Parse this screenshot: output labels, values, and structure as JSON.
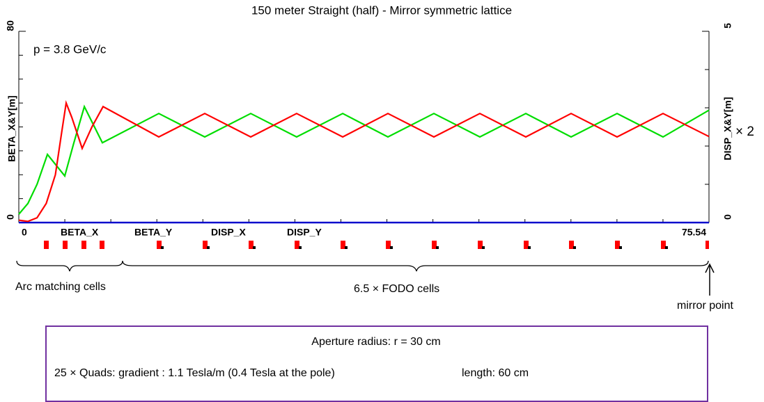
{
  "chart_data": {
    "type": "line",
    "title": "150 meter Straight (half) - Mirror symmetric lattice",
    "subtitle": "p = 3.8 GeV/c",
    "y_label": "BETA_X&Y[m]",
    "y2_label": "DISP_X&Y[m]",
    "y2_factor": "× 2",
    "xlim": [
      0,
      75.54
    ],
    "xticks": [
      0,
      75.54
    ],
    "ylim": [
      0,
      80
    ],
    "yticks": [
      0,
      80
    ],
    "y2lim": [
      0,
      5
    ],
    "y2ticks": [
      0,
      5
    ],
    "series": [
      {
        "name": "BETA_X",
        "color": "#ff0000",
        "x": [
          0,
          1,
          2,
          3,
          4,
          4.7,
          5.18,
          5.8,
          6.94,
          8,
          9.22,
          15.32,
          20.35,
          25.38,
          30.41,
          35.45,
          40.4,
          45.43,
          50.46,
          55.49,
          60.45,
          65.48,
          70.51,
          75.54
        ],
        "values": [
          1,
          0.5,
          2,
          8,
          20,
          38,
          50,
          44,
          31,
          40,
          48.5,
          35.8,
          45.6,
          35.8,
          45.6,
          35.8,
          45.6,
          35.8,
          45.6,
          35.8,
          45.6,
          35.8,
          45.6,
          36
        ]
      },
      {
        "name": "BETA_Y",
        "color": "#00dd00",
        "x": [
          0,
          1,
          2,
          3.13,
          5.03,
          6,
          7.17,
          9.15,
          15.32,
          20.35,
          25.38,
          30.41,
          35.45,
          40.4,
          45.43,
          50.46,
          55.49,
          60.45,
          65.48,
          70.51,
          75.54
        ],
        "values": [
          3.5,
          8,
          16,
          28.5,
          19.5,
          33,
          48.5,
          33.4,
          45.6,
          35.8,
          45.6,
          35.8,
          45.6,
          35.8,
          45.6,
          35.8,
          45.6,
          35.8,
          45.6,
          35.8,
          47
        ]
      },
      {
        "name": "DISP_X",
        "color": "#0000cc",
        "axis": "y2",
        "x": [
          0,
          75.54
        ],
        "values": [
          0,
          0
        ]
      },
      {
        "name": "DISP_Y",
        "color": "#0000cc",
        "axis": "y2",
        "x": [
          0,
          75.54
        ],
        "values": [
          0,
          0
        ]
      }
    ],
    "annotations": [
      "Arc matching cells",
      "6.5 × FODO cells",
      "mirror point"
    ],
    "notes": [
      "Aperture radius: r = 30 cm",
      "25 × Quads:  gradient : 1.1 Tesla/m (0.4 Tesla at the pole)",
      "length: 60 cm"
    ]
  }
}
